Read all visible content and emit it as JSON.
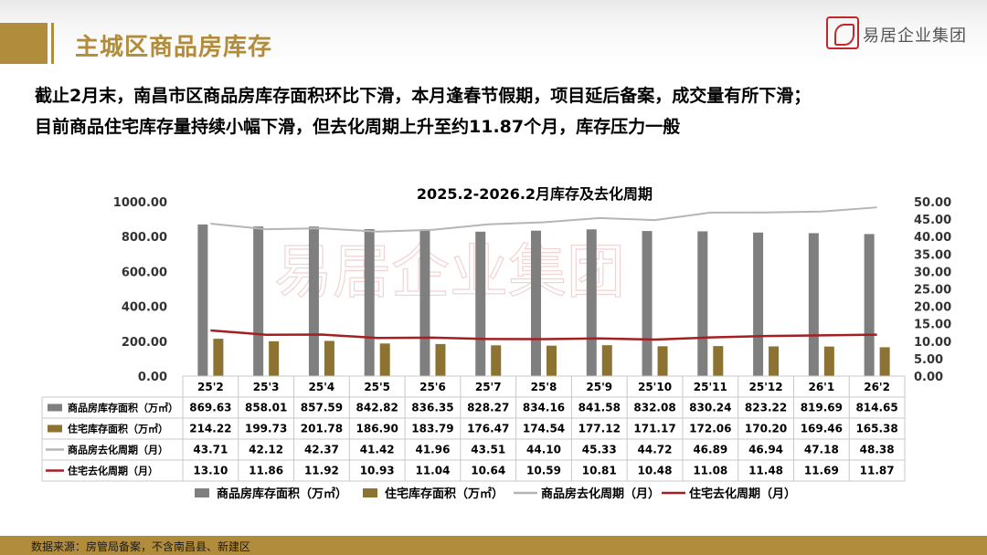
{
  "slide": {
    "title": "主城区商品房库存",
    "logo_text": "易居企业集团",
    "description_line1": "截止2月末，南昌市区商品房库存面积环比下滑，本月逢春节假期，项目延后备案，成交量有所下滑；",
    "description_line2": "目前商品住宅库存量持续小幅下滑，但去化周期上升至约11.87个月，库存压力一般",
    "source": "数据来源：房管局备案，不含南昌县、新建区",
    "colors": {
      "accent": "#b08c3c",
      "logo_red": "#c0282a"
    }
  },
  "chart_data": {
    "type": "bar",
    "title": "2025.2-2026.2月库存及去化周期",
    "categories": [
      "25'2",
      "25'3",
      "25'4",
      "25'5",
      "25'6",
      "25'7",
      "25'8",
      "25'9",
      "25'10",
      "25'11",
      "25'12",
      "26'1",
      "26'2"
    ],
    "y_left": {
      "min": 0,
      "max": 1000,
      "ticks": [
        "0.00",
        "200.00",
        "400.00",
        "600.00",
        "800.00",
        "1000.00"
      ]
    },
    "y_right": {
      "min": 0,
      "max": 50,
      "ticks": [
        "0.00",
        "5.00",
        "10.00",
        "15.00",
        "20.00",
        "25.00",
        "30.00",
        "35.00",
        "40.00",
        "45.00",
        "50.00"
      ]
    },
    "series": [
      {
        "name": "商品房库存面积（万㎡）",
        "type": "bar",
        "axis": "left",
        "color": "#7f7f7f",
        "values": [
          869.63,
          858.01,
          857.59,
          842.82,
          836.35,
          828.27,
          834.16,
          841.58,
          832.08,
          830.24,
          823.22,
          819.69,
          814.65
        ],
        "labels": [
          "869.63",
          "858.01",
          "857.59",
          "842.82",
          "836.35",
          "828.27",
          "834.16",
          "841.58",
          "832.08",
          "830.24",
          "823.22",
          "819.69",
          "814.65"
        ]
      },
      {
        "name": "住宅库存面积（万㎡）",
        "type": "bar",
        "axis": "left",
        "color": "#8c7331",
        "values": [
          214.22,
          199.73,
          201.78,
          186.9,
          183.79,
          176.47,
          174.54,
          177.12,
          171.17,
          172.06,
          170.2,
          169.46,
          165.38
        ],
        "labels": [
          "214.22",
          "199.73",
          "201.78",
          "186.90",
          "183.79",
          "176.47",
          "174.54",
          "177.12",
          "171.17",
          "172.06",
          "170.20",
          "169.46",
          "165.38"
        ]
      },
      {
        "name": "商品房去化周期（月）",
        "type": "line",
        "axis": "right",
        "color": "#b5b5b5",
        "values": [
          43.71,
          42.12,
          42.37,
          41.42,
          41.96,
          43.51,
          44.1,
          45.33,
          44.72,
          46.89,
          46.94,
          47.18,
          48.38
        ],
        "labels": [
          "43.71",
          "42.12",
          "42.37",
          "41.42",
          "41.96",
          "43.51",
          "44.10",
          "45.33",
          "44.72",
          "46.89",
          "46.94",
          "47.18",
          "48.38"
        ]
      },
      {
        "name": "住宅去化周期（月）",
        "type": "line",
        "axis": "right",
        "color": "#a31f22",
        "values": [
          13.1,
          11.86,
          11.92,
          10.93,
          11.04,
          10.64,
          10.59,
          10.81,
          10.48,
          11.08,
          11.48,
          11.69,
          11.87
        ],
        "labels": [
          "13.10",
          "11.86",
          "11.92",
          "10.93",
          "11.04",
          "10.64",
          "10.59",
          "10.81",
          "10.48",
          "11.08",
          "11.48",
          "11.69",
          "11.87"
        ]
      }
    ],
    "legend_position": "bottom",
    "data_table": true,
    "grid": false
  }
}
